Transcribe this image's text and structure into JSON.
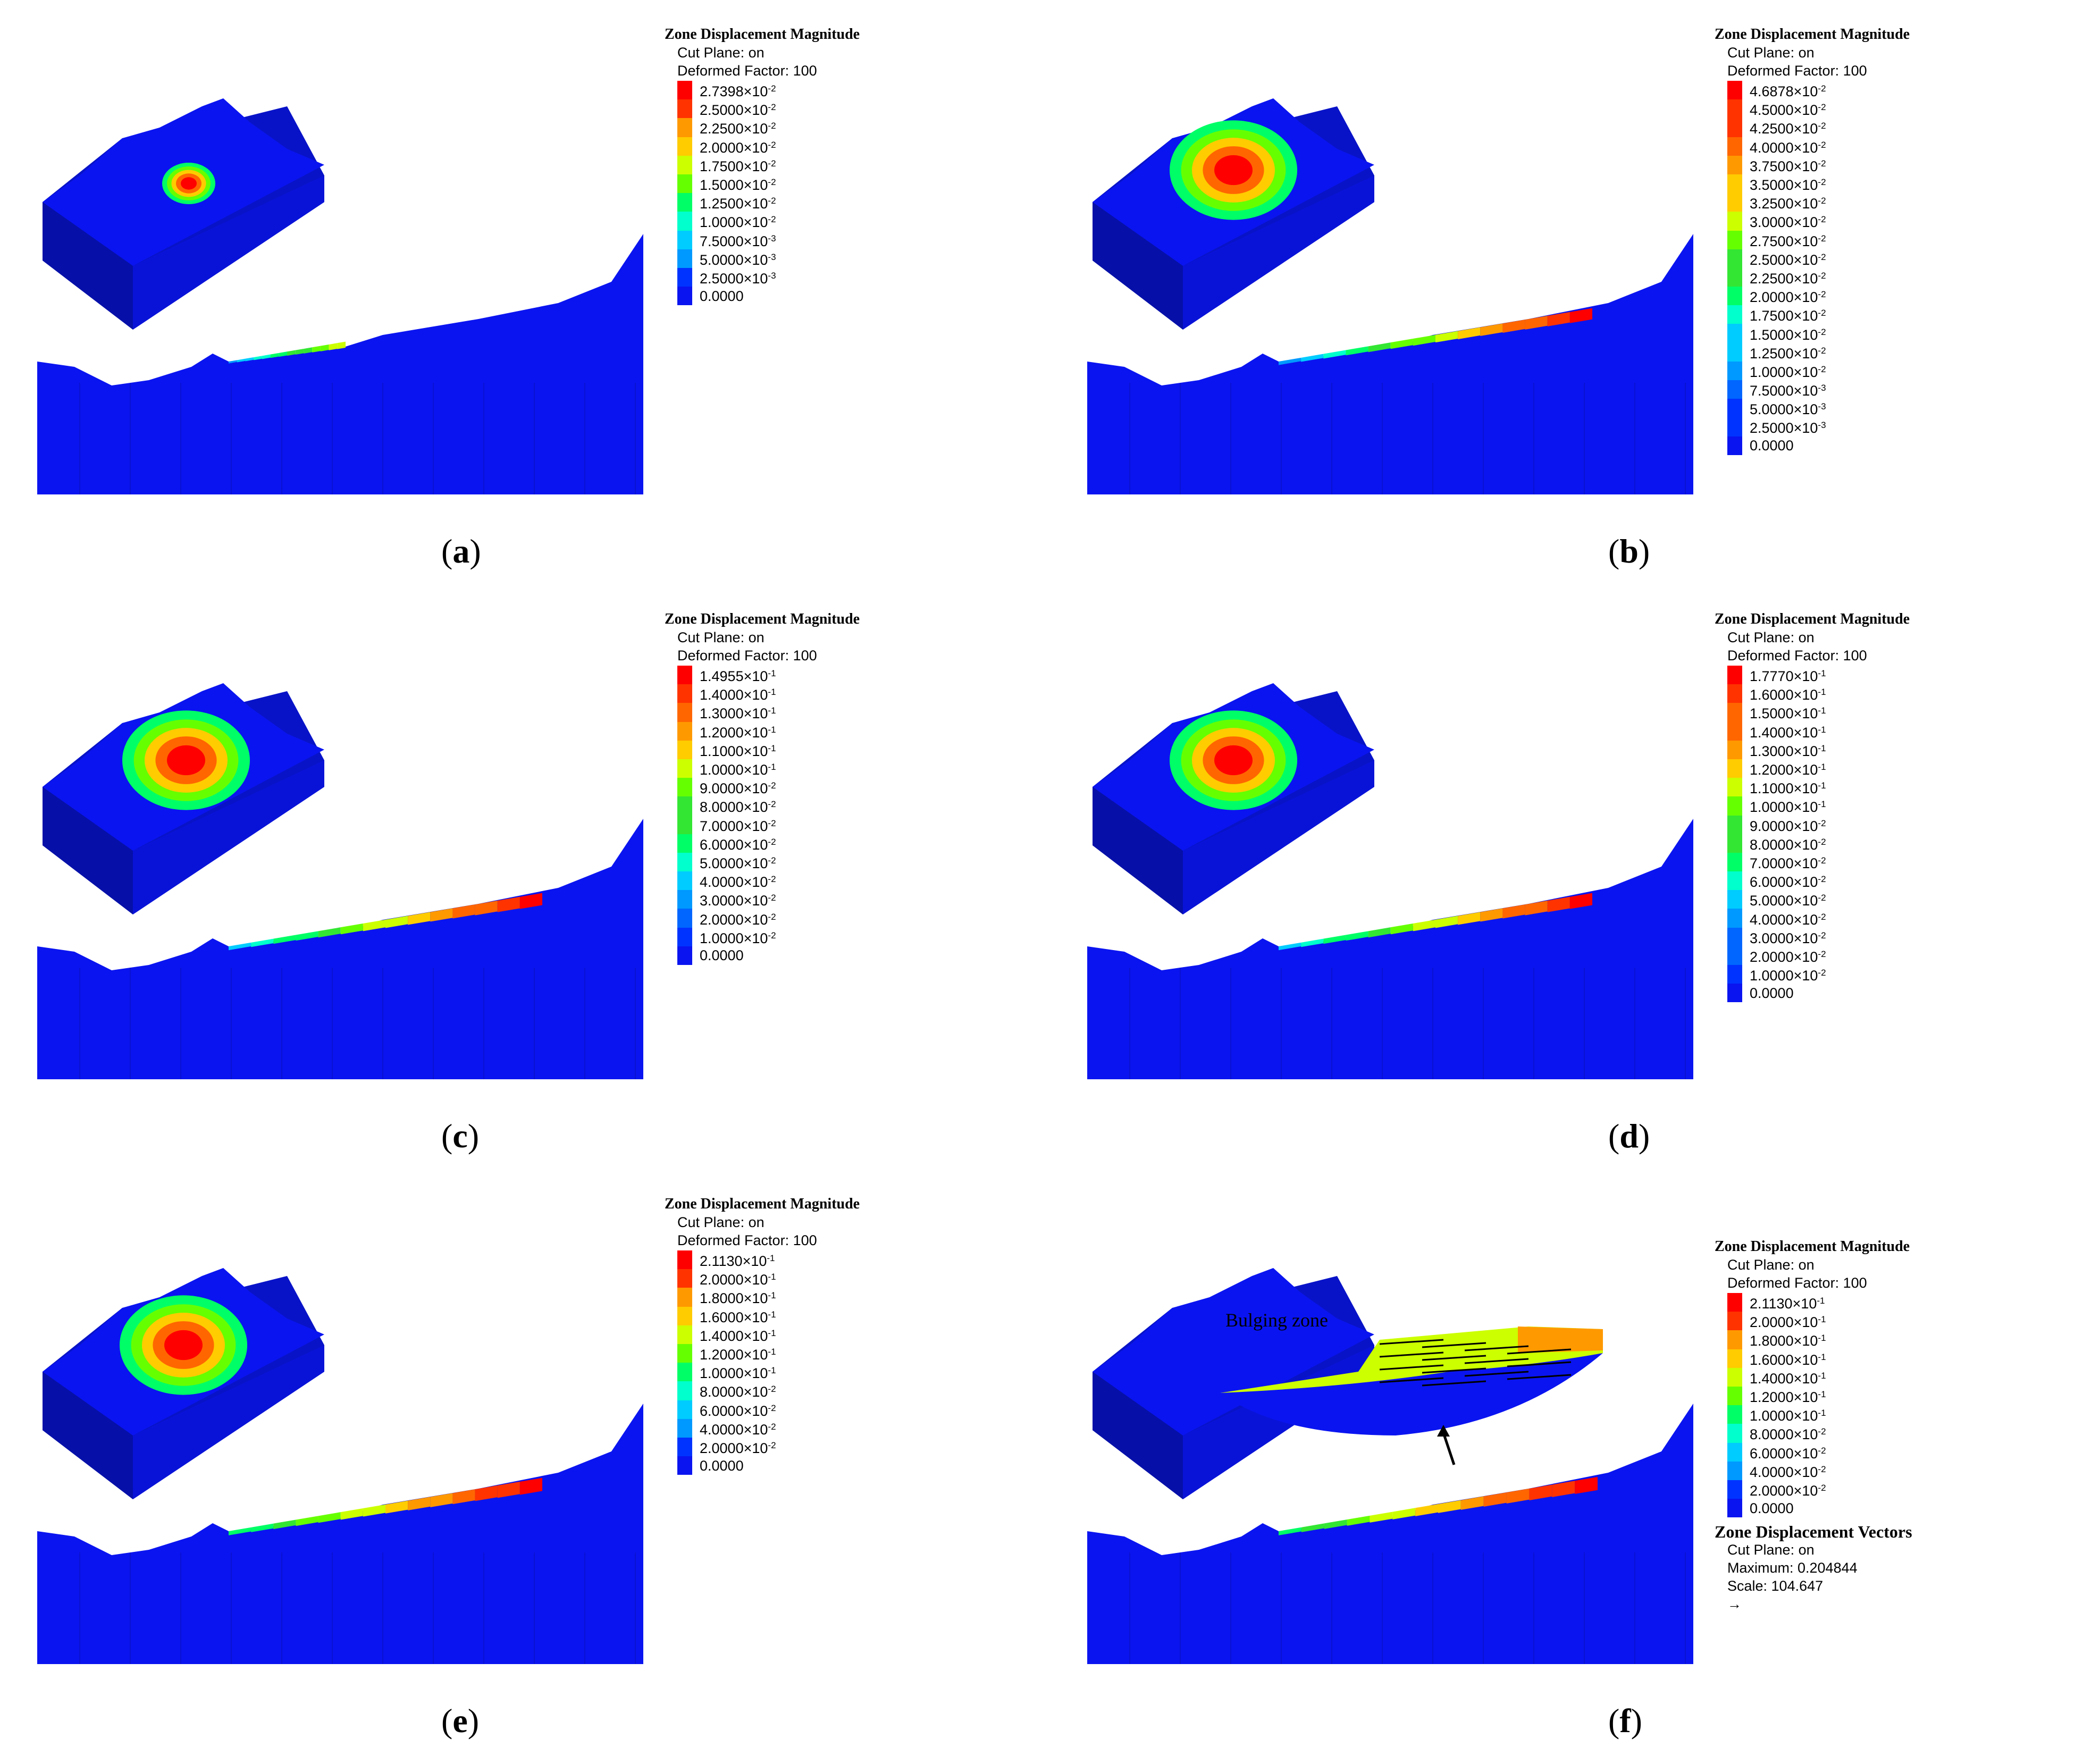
{
  "legend_common": {
    "title": "Zone Displacement Magnitude",
    "cut_plane": "Cut Plane: on",
    "deformed_factor": "Deformed Factor: 100"
  },
  "panels": [
    {
      "id": "a",
      "caption": "a",
      "legend": [
        [
          "2.7398",
          "-2"
        ],
        [
          "2.5000",
          "-2"
        ],
        [
          "2.2500",
          "-2"
        ],
        [
          "2.0000",
          "-2"
        ],
        [
          "1.7500",
          "-2"
        ],
        [
          "1.5000",
          "-2"
        ],
        [
          "1.2500",
          "-2"
        ],
        [
          "1.0000",
          "-2"
        ],
        [
          "7.5000",
          "-3"
        ],
        [
          "5.0000",
          "-3"
        ],
        [
          "2.5000",
          "-3"
        ],
        [
          "0.0000",
          ""
        ]
      ]
    },
    {
      "id": "b",
      "caption": "b",
      "legend": [
        [
          "4.6878",
          "-2"
        ],
        [
          "4.5000",
          "-2"
        ],
        [
          "4.2500",
          "-2"
        ],
        [
          "4.0000",
          "-2"
        ],
        [
          "3.7500",
          "-2"
        ],
        [
          "3.5000",
          "-2"
        ],
        [
          "3.2500",
          "-2"
        ],
        [
          "3.0000",
          "-2"
        ],
        [
          "2.7500",
          "-2"
        ],
        [
          "2.5000",
          "-2"
        ],
        [
          "2.2500",
          "-2"
        ],
        [
          "2.0000",
          "-2"
        ],
        [
          "1.7500",
          "-2"
        ],
        [
          "1.5000",
          "-2"
        ],
        [
          "1.2500",
          "-2"
        ],
        [
          "1.0000",
          "-2"
        ],
        [
          "7.5000",
          "-3"
        ],
        [
          "5.0000",
          "-3"
        ],
        [
          "2.5000",
          "-3"
        ],
        [
          "0.0000",
          ""
        ]
      ]
    },
    {
      "id": "c",
      "caption": "c",
      "legend": [
        [
          "1.4955",
          "-1"
        ],
        [
          "1.4000",
          "-1"
        ],
        [
          "1.3000",
          "-1"
        ],
        [
          "1.2000",
          "-1"
        ],
        [
          "1.1000",
          "-1"
        ],
        [
          "1.0000",
          "-1"
        ],
        [
          "9.0000",
          "-2"
        ],
        [
          "8.0000",
          "-2"
        ],
        [
          "7.0000",
          "-2"
        ],
        [
          "6.0000",
          "-2"
        ],
        [
          "5.0000",
          "-2"
        ],
        [
          "4.0000",
          "-2"
        ],
        [
          "3.0000",
          "-2"
        ],
        [
          "2.0000",
          "-2"
        ],
        [
          "1.0000",
          "-2"
        ],
        [
          "0.0000",
          ""
        ]
      ]
    },
    {
      "id": "d",
      "caption": "d",
      "legend": [
        [
          "1.7770",
          "-1"
        ],
        [
          "1.6000",
          "-1"
        ],
        [
          "1.5000",
          "-1"
        ],
        [
          "1.4000",
          "-1"
        ],
        [
          "1.3000",
          "-1"
        ],
        [
          "1.2000",
          "-1"
        ],
        [
          "1.1000",
          "-1"
        ],
        [
          "1.0000",
          "-1"
        ],
        [
          "9.0000",
          "-2"
        ],
        [
          "8.0000",
          "-2"
        ],
        [
          "7.0000",
          "-2"
        ],
        [
          "6.0000",
          "-2"
        ],
        [
          "5.0000",
          "-2"
        ],
        [
          "4.0000",
          "-2"
        ],
        [
          "3.0000",
          "-2"
        ],
        [
          "2.0000",
          "-2"
        ],
        [
          "1.0000",
          "-2"
        ],
        [
          "0.0000",
          ""
        ]
      ]
    },
    {
      "id": "e",
      "caption": "e",
      "legend": [
        [
          "2.1130",
          "-1"
        ],
        [
          "2.0000",
          "-1"
        ],
        [
          "1.8000",
          "-1"
        ],
        [
          "1.6000",
          "-1"
        ],
        [
          "1.4000",
          "-1"
        ],
        [
          "1.2000",
          "-1"
        ],
        [
          "1.0000",
          "-1"
        ],
        [
          "8.0000",
          "-2"
        ],
        [
          "6.0000",
          "-2"
        ],
        [
          "4.0000",
          "-2"
        ],
        [
          "2.0000",
          "-2"
        ],
        [
          "0.0000",
          ""
        ]
      ]
    },
    {
      "id": "f",
      "caption": "f",
      "legend": [
        [
          "2.1130",
          "-1"
        ],
        [
          "2.0000",
          "-1"
        ],
        [
          "1.8000",
          "-1"
        ],
        [
          "1.6000",
          "-1"
        ],
        [
          "1.4000",
          "-1"
        ],
        [
          "1.2000",
          "-1"
        ],
        [
          "1.0000",
          "-1"
        ],
        [
          "8.0000",
          "-2"
        ],
        [
          "6.0000",
          "-2"
        ],
        [
          "4.0000",
          "-2"
        ],
        [
          "2.0000",
          "-2"
        ],
        [
          "0.0000",
          ""
        ]
      ],
      "inset_label": "Bulging zone",
      "vectors_legend": {
        "title": "Zone Displacement Vectors",
        "cut_plane": "Cut Plane: on",
        "maximum": "Maximum: 0.204844",
        "scale": "Scale: 104.647"
      }
    }
  ],
  "times_symbol": "×10",
  "colors": {
    "base_blue": "#0a14f0",
    "scale": [
      "#ff0000",
      "#ff3300",
      "#ff6600",
      "#ff9900",
      "#ffcc00",
      "#ccff00",
      "#66ff00",
      "#33e633",
      "#00ff66",
      "#00ffcc",
      "#00ccff",
      "#0099ff",
      "#0066ff",
      "#0033ff",
      "#0000ff"
    ]
  }
}
